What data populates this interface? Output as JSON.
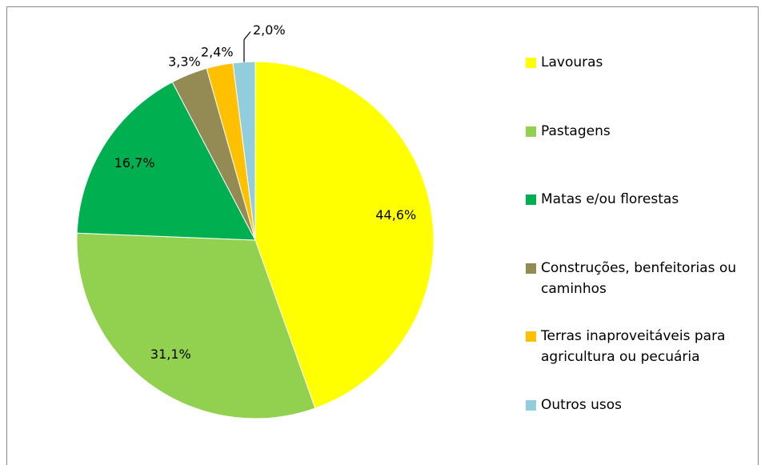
{
  "chart_data": {
    "type": "pie",
    "categories": [
      "Lavouras",
      "Pastagens",
      "Matas e/ou florestas",
      "Construções, benfeitorias ou caminhos",
      "Terras inaproveitáveis para agricultura ou pecuária",
      "Outros usos"
    ],
    "values": [
      44.6,
      31.1,
      16.7,
      3.3,
      2.4,
      2.0
    ],
    "value_labels": [
      "44,6%",
      "31,1%",
      "16,7%",
      "3,3%",
      "2,4%",
      "2,0%"
    ],
    "colors": [
      "#ffff00",
      "#92d050",
      "#00b050",
      "#948a54",
      "#ffc000",
      "#92cddc"
    ],
    "legend": "right"
  }
}
